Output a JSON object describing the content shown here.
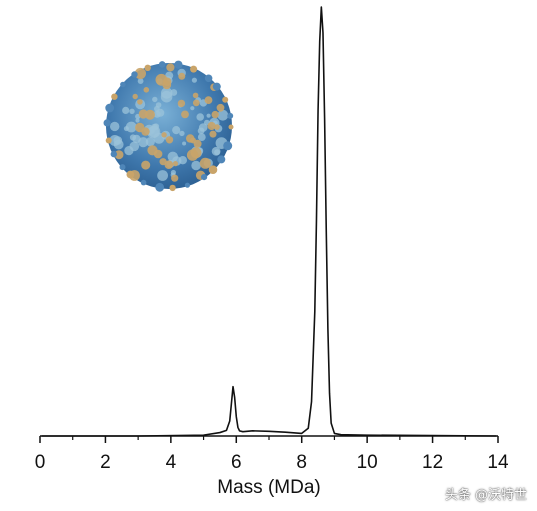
{
  "chart_data": {
    "type": "line",
    "title": "",
    "xlabel": "Mass (MDa)",
    "ylabel": "",
    "xlim": [
      0,
      14
    ],
    "x_ticks": [
      0,
      2,
      4,
      6,
      8,
      10,
      12,
      14
    ],
    "tick_labels": [
      "0",
      "2",
      "4",
      "6",
      "8",
      "10",
      "12",
      "14"
    ],
    "ylim": [
      0,
      100
    ],
    "grid": false,
    "legend": "none",
    "series": [
      {
        "color": "#111111",
        "x": [
          0.05,
          3.0,
          5.0,
          5.5,
          5.7,
          5.8,
          5.85,
          5.9,
          5.95,
          6.0,
          6.05,
          6.1,
          6.2,
          6.5,
          7.0,
          7.5,
          8.0,
          8.2,
          8.3,
          8.4,
          8.45,
          8.5,
          8.55,
          8.6,
          8.65,
          8.7,
          8.75,
          8.8,
          8.85,
          8.9,
          9.0,
          9.2,
          10.0,
          12.0,
          13.95
        ],
        "y": [
          0,
          0,
          0.2,
          0.8,
          1.3,
          3.5,
          7.5,
          11.5,
          9.0,
          4.5,
          2.0,
          1.2,
          1.0,
          1.2,
          1.1,
          0.9,
          0.6,
          1.8,
          8.0,
          29.0,
          50.0,
          76.0,
          92.0,
          100.0,
          94.0,
          74.0,
          48.0,
          25.0,
          10.0,
          3.0,
          0.6,
          0.3,
          0.2,
          0.1,
          0
        ]
      }
    ]
  },
  "inset": {
    "name": "virus-particle-illustration",
    "base_color": "#4f86b8",
    "highlight_color": "#9bc3d9",
    "protrusion_color": "#c9a469"
  },
  "watermark": "头条 @沃特世"
}
